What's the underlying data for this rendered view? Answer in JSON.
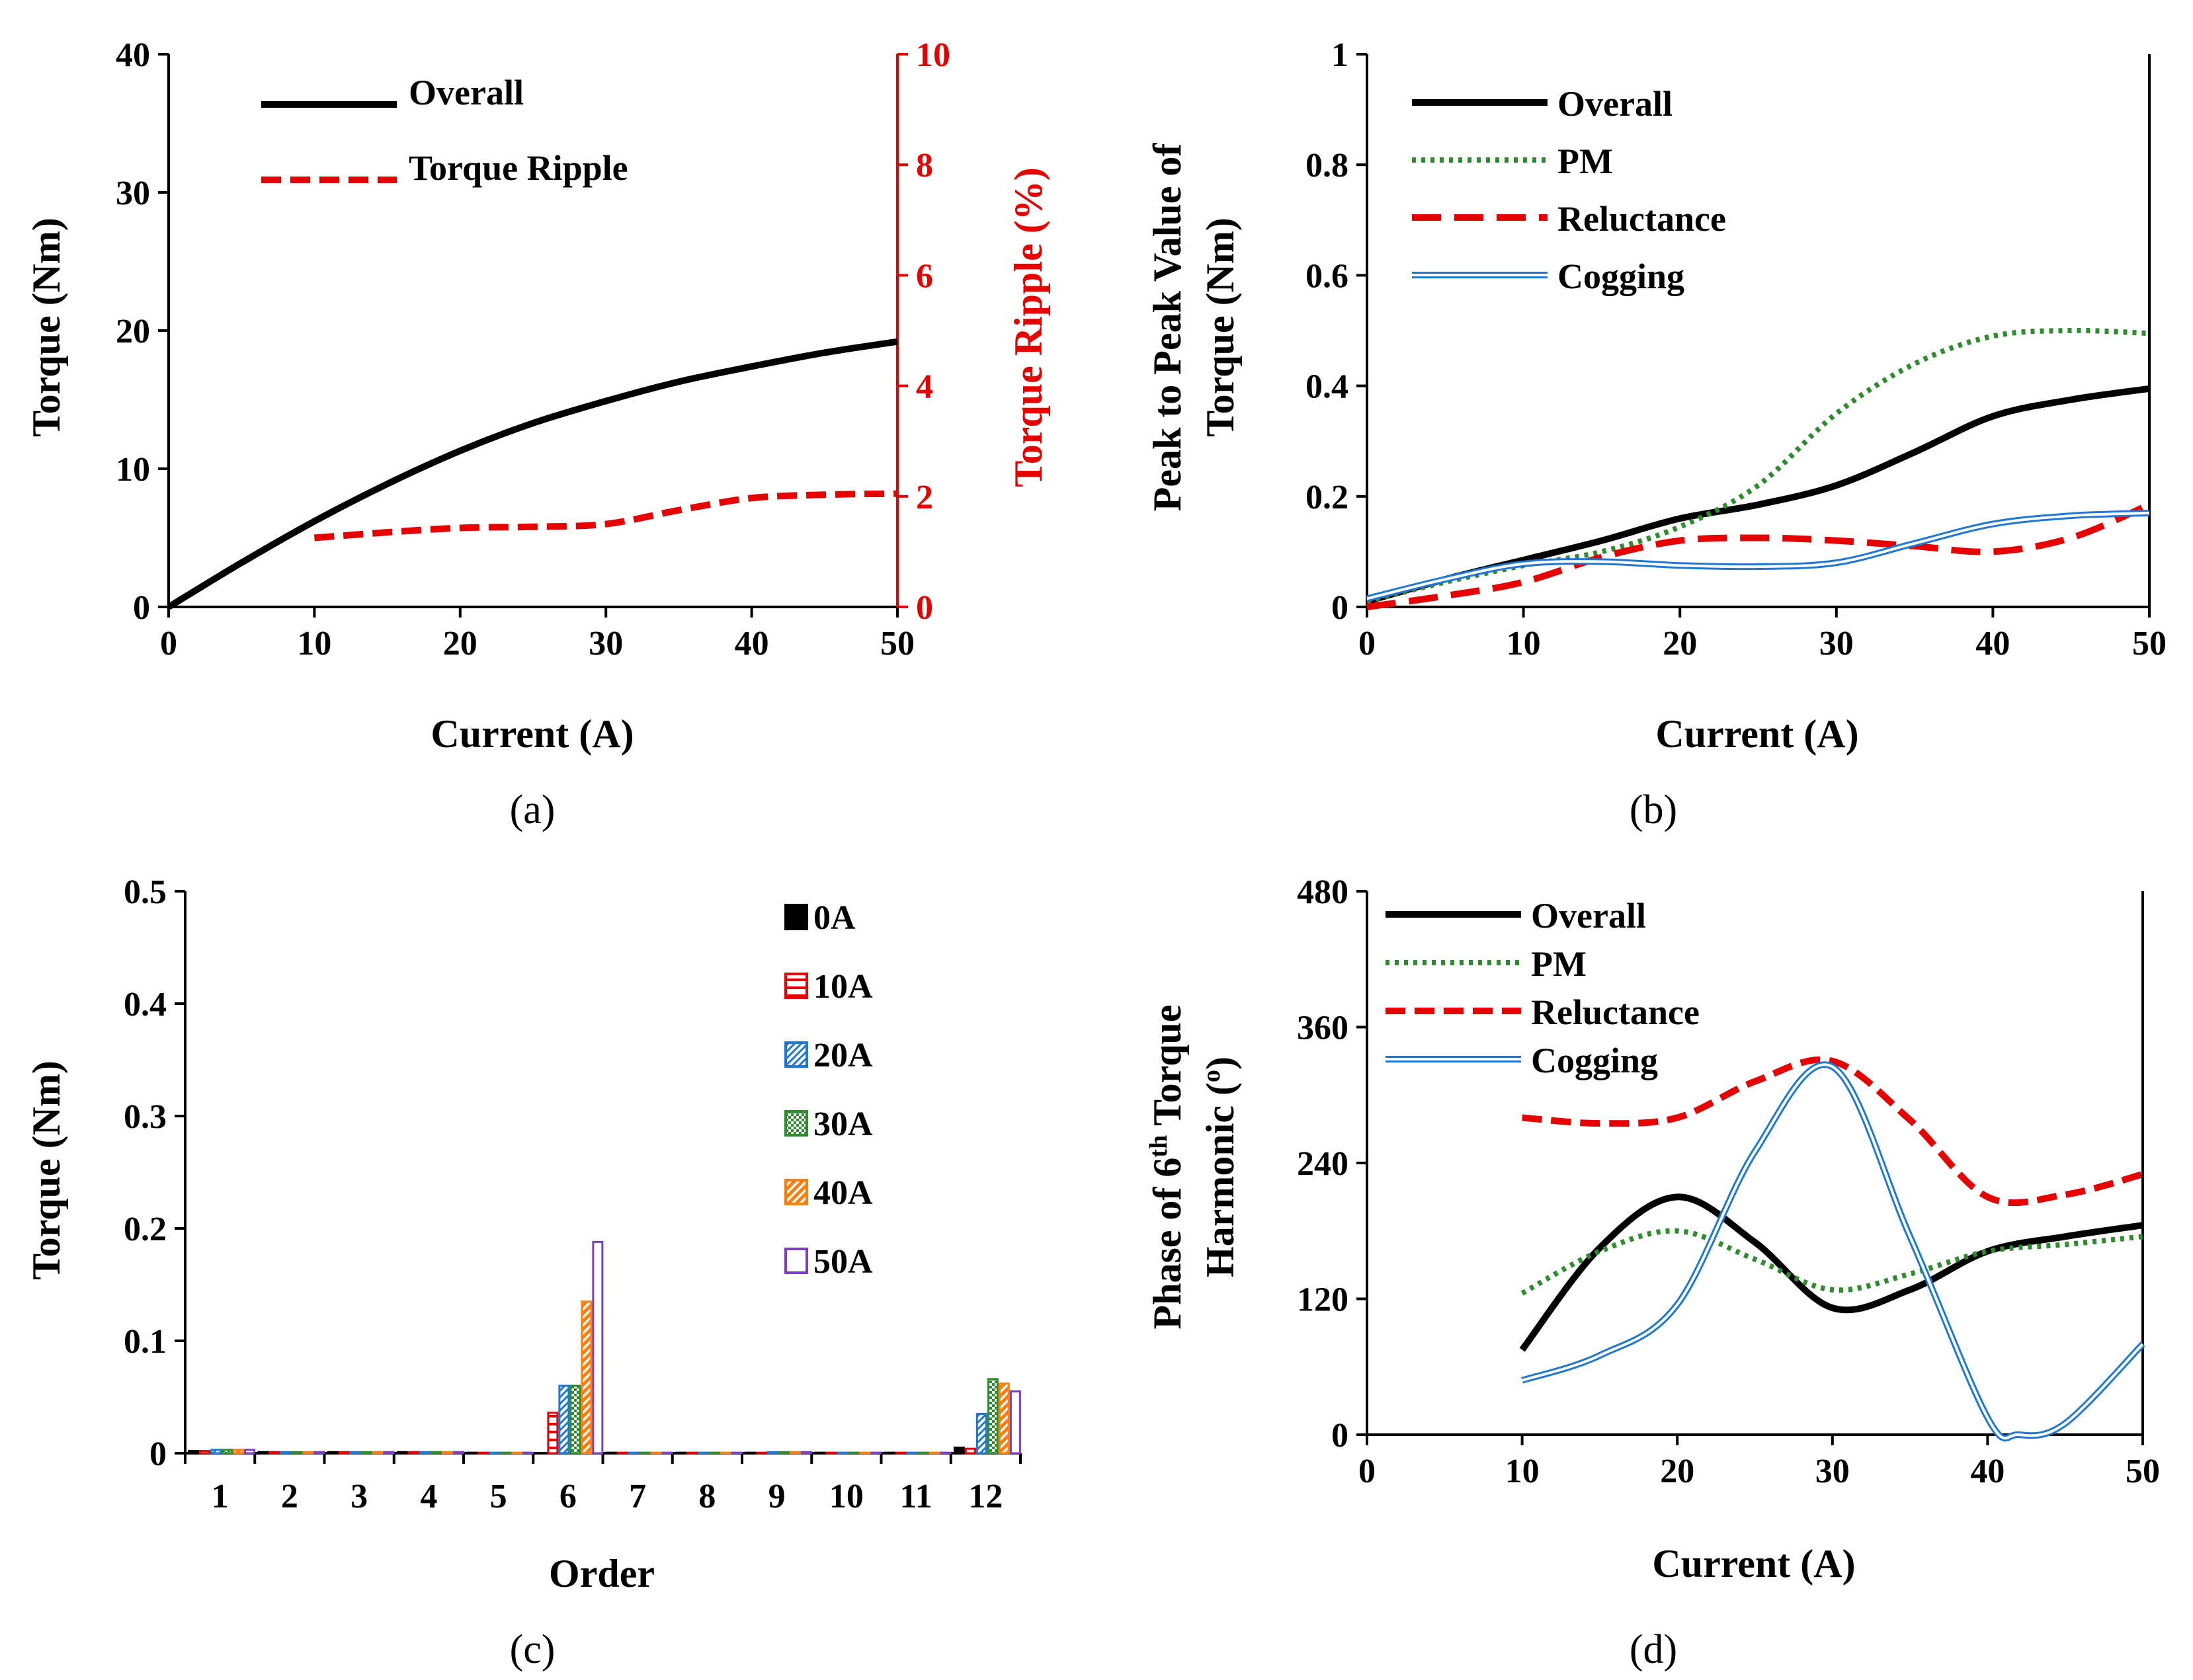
{
  "colors": {
    "black": "#000000",
    "pm": "#2e8b2e",
    "reluctance": "#e60000",
    "cogging": "#1f77d4",
    "red_axis": "#e60000",
    "bar_10A": "#e60000",
    "bar_20A": "#1f77d4",
    "bar_30A": "#2e8b2e",
    "bar_40A": "#ff7f0e",
    "bar_50A": "#7b3fc4"
  },
  "chart_data": [
    {
      "id": "a",
      "type": "line",
      "caption": "(a)",
      "xlabel": "Current (A)",
      "ylabel": "Torque (Nm)",
      "y2label": "Torque Ripple (%)",
      "xlim": [
        0,
        50
      ],
      "ylim": [
        0,
        40
      ],
      "y2lim": [
        0,
        10
      ],
      "xticks": [
        "0",
        "10",
        "20",
        "30",
        "40",
        "50"
      ],
      "yticks": [
        "0",
        "10",
        "20",
        "30",
        "40"
      ],
      "y2ticks": [
        "0",
        "2",
        "4",
        "6",
        "8",
        "10"
      ],
      "legend": [
        "Overall",
        "Torque Ripple"
      ],
      "series": [
        {
          "name": "Overall",
          "axis": "left",
          "style": "solid",
          "color": "#000000",
          "x": [
            0,
            5,
            10,
            15,
            20,
            25,
            30,
            35,
            40,
            45,
            50
          ],
          "y": [
            0,
            3.2,
            6.2,
            8.9,
            11.3,
            13.3,
            14.9,
            16.3,
            17.4,
            18.4,
            19.2
          ]
        },
        {
          "name": "Torque Ripple",
          "axis": "right",
          "style": "dash",
          "color": "#e60000",
          "x": [
            10,
            15,
            20,
            25,
            30,
            35,
            40,
            45,
            50
          ],
          "y": [
            1.25,
            1.35,
            1.43,
            1.45,
            1.5,
            1.75,
            1.97,
            2.03,
            2.05
          ]
        }
      ]
    },
    {
      "id": "b",
      "type": "line",
      "caption": "(b)",
      "xlabel": "Current (A)",
      "ylabel": "Peak to Peak Value of Torque (Nm)",
      "ylabel_lines": [
        "Peak to Peak Value of",
        "Torque (Nm)"
      ],
      "xlim": [
        0,
        50
      ],
      "ylim": [
        0,
        1
      ],
      "xticks": [
        "0",
        "10",
        "20",
        "30",
        "40",
        "50"
      ],
      "yticks": [
        "0",
        "0.2",
        "0.4",
        "0.6",
        "0.8",
        "1"
      ],
      "legend": [
        "Overall",
        "PM",
        "Reluctance",
        "Cogging"
      ],
      "series": [
        {
          "name": "Overall",
          "style": "solid",
          "color": "#000000",
          "x": [
            0,
            5,
            10,
            15,
            20,
            25,
            30,
            35,
            40,
            45,
            50
          ],
          "y": [
            0.01,
            0.05,
            0.085,
            0.12,
            0.16,
            0.185,
            0.22,
            0.28,
            0.345,
            0.375,
            0.395
          ]
        },
        {
          "name": "PM",
          "style": "dot",
          "color": "#2e8b2e",
          "x": [
            0,
            5,
            10,
            15,
            20,
            25,
            30,
            35,
            40,
            45,
            50
          ],
          "y": [
            0.01,
            0.045,
            0.075,
            0.1,
            0.145,
            0.22,
            0.35,
            0.44,
            0.49,
            0.5,
            0.495
          ]
        },
        {
          "name": "Reluctance",
          "style": "dash",
          "color": "#e60000",
          "x": [
            0,
            5,
            10,
            15,
            20,
            25,
            30,
            35,
            40,
            45,
            50
          ],
          "y": [
            0.0,
            0.02,
            0.045,
            0.09,
            0.12,
            0.125,
            0.12,
            0.11,
            0.1,
            0.125,
            0.185
          ]
        },
        {
          "name": "Cogging",
          "style": "double",
          "color": "#1f77d4",
          "x": [
            0,
            5,
            10,
            15,
            20,
            25,
            30,
            35,
            40,
            45,
            50
          ],
          "y": [
            0.015,
            0.05,
            0.078,
            0.082,
            0.075,
            0.073,
            0.08,
            0.115,
            0.15,
            0.165,
            0.17
          ]
        }
      ]
    },
    {
      "id": "c",
      "type": "bar",
      "caption": "(c)",
      "xlabel": "Order",
      "ylabel": "Torque (Nm)",
      "ylim": [
        0,
        0.5
      ],
      "yticks": [
        "0",
        "0.1",
        "0.2",
        "0.3",
        "0.4",
        "0.5"
      ],
      "categories": [
        "1",
        "2",
        "3",
        "4",
        "5",
        "6",
        "7",
        "8",
        "9",
        "10",
        "11",
        "12"
      ],
      "series": [
        {
          "name": "0A",
          "color": "#000000",
          "values": [
            0.002,
            0.001,
            0.001,
            0.001,
            0.0005,
            0.0,
            0.0005,
            0.0005,
            0.0005,
            0.0005,
            0.0005,
            0.005
          ]
        },
        {
          "name": "10A",
          "color": "#e60000",
          "values": [
            0.002,
            0.001,
            0.001,
            0.001,
            0.0005,
            0.036,
            0.0005,
            0.0005,
            0.0005,
            0.0005,
            0.0005,
            0.004
          ]
        },
        {
          "name": "20A",
          "color": "#1f77d4",
          "values": [
            0.003,
            0.001,
            0.001,
            0.001,
            0.0005,
            0.06,
            0.0005,
            0.0005,
            0.001,
            0.0005,
            0.0005,
            0.035
          ]
        },
        {
          "name": "30A",
          "color": "#2e8b2e",
          "values": [
            0.003,
            0.001,
            0.001,
            0.001,
            0.0005,
            0.06,
            0.0005,
            0.0005,
            0.001,
            0.0005,
            0.0005,
            0.066
          ]
        },
        {
          "name": "40A",
          "color": "#ff7f0e",
          "values": [
            0.003,
            0.001,
            0.001,
            0.001,
            0.0005,
            0.135,
            0.0005,
            0.0005,
            0.001,
            0.0005,
            0.0005,
            0.062
          ]
        },
        {
          "name": "50A",
          "color": "#7b3fc4",
          "values": [
            0.003,
            0.001,
            0.001,
            0.001,
            0.0005,
            0.188,
            0.0005,
            0.0005,
            0.001,
            0.0005,
            0.0005,
            0.055
          ]
        }
      ],
      "legend": [
        "0A",
        "10A",
        "20A",
        "30A",
        "40A",
        "50A"
      ]
    },
    {
      "id": "d",
      "type": "line",
      "caption": "(d)",
      "xlabel": "Current (A)",
      "ylabel": "Phase of 6th Torque Harmonic (o)",
      "ylabel_line1_pre": "Phase of 6",
      "ylabel_line1_sup": "th",
      "ylabel_line1_post": " Torque",
      "ylabel_line2_pre": "Harmonic (",
      "ylabel_line2_sup": "o",
      "ylabel_line2_post": ")",
      "xlim": [
        0,
        50
      ],
      "ylim": [
        0,
        480
      ],
      "xticks": [
        "0",
        "10",
        "20",
        "30",
        "40",
        "50"
      ],
      "yticks": [
        "0",
        "120",
        "240",
        "360",
        "480"
      ],
      "legend": [
        "Overall",
        "PM",
        "Reluctance",
        "Cogging"
      ],
      "series": [
        {
          "name": "Overall",
          "style": "solid",
          "color": "#000000",
          "x": [
            10,
            15,
            20,
            25,
            30,
            35,
            40,
            45,
            50
          ],
          "y": [
            75,
            165,
            210,
            170,
            112,
            128,
            162,
            175,
            185
          ]
        },
        {
          "name": "PM",
          "style": "dot",
          "color": "#2e8b2e",
          "x": [
            10,
            15,
            20,
            25,
            30,
            35,
            40,
            45,
            50
          ],
          "y": [
            125,
            162,
            180,
            155,
            128,
            142,
            162,
            168,
            175
          ]
        },
        {
          "name": "Reluctance",
          "style": "dash",
          "color": "#e60000",
          "x": [
            10,
            15,
            20,
            25,
            30,
            35,
            40,
            45,
            50
          ],
          "y": [
            280,
            275,
            280,
            312,
            330,
            278,
            210,
            212,
            230
          ]
        },
        {
          "name": "Cogging",
          "style": "double",
          "color": "#1f77d4",
          "x": [
            10,
            15,
            20,
            25,
            30,
            35,
            40,
            42,
            45,
            50
          ],
          "y": [
            48,
            70,
            115,
            250,
            325,
            175,
            15,
            0,
            10,
            80
          ]
        }
      ]
    }
  ]
}
